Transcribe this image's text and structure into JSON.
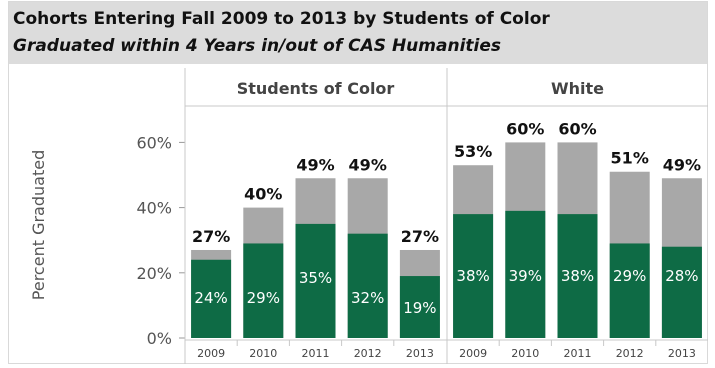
{
  "title": "Cohorts Entering Fall 2009 to 2013 by Students of Color",
  "subtitle": "Graduated within 4 Years in/out of CAS Humanities",
  "chart_data": {
    "type": "bar",
    "stacked": true,
    "ylabel": "Percent Graduated",
    "ylim": [
      0,
      0.65
    ],
    "y_ticks": [
      "0%",
      "20%",
      "40%",
      "60%"
    ],
    "grid": false,
    "colors": {
      "in_cas": "#0e6b45",
      "out_cas": "#a8a8a8"
    },
    "panels": [
      {
        "name": "Students of Color",
        "categories": [
          "2009",
          "2010",
          "2011",
          "2012",
          "2013"
        ],
        "in_cas": [
          0.24,
          0.29,
          0.35,
          0.32,
          0.19
        ],
        "total": [
          0.27,
          0.4,
          0.49,
          0.49,
          0.27
        ],
        "in_labels": [
          "24%",
          "29%",
          "35%",
          "32%",
          "19%"
        ],
        "total_labels": [
          "27%",
          "40%",
          "49%",
          "49%",
          "27%"
        ]
      },
      {
        "name": "White",
        "categories": [
          "2009",
          "2010",
          "2011",
          "2012",
          "2013"
        ],
        "in_cas": [
          0.38,
          0.39,
          0.38,
          0.29,
          0.28
        ],
        "total": [
          0.53,
          0.6,
          0.6,
          0.51,
          0.49
        ],
        "in_labels": [
          "38%",
          "39%",
          "38%",
          "29%",
          "28%"
        ],
        "total_labels": [
          "53%",
          "60%",
          "60%",
          "51%",
          "49%"
        ]
      }
    ]
  }
}
